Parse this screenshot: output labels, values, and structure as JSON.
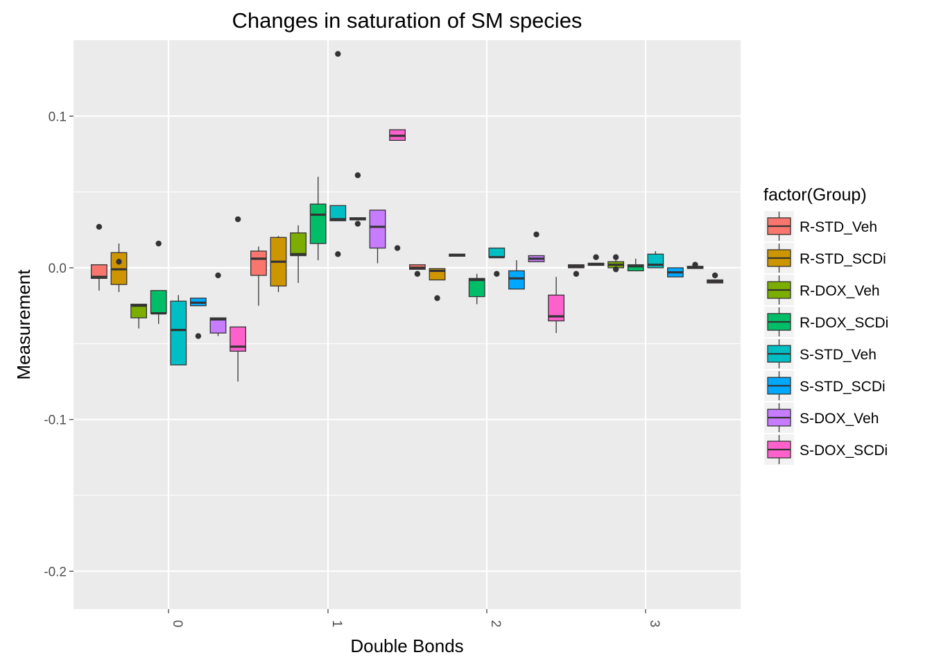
{
  "chart_data": {
    "type": "boxplot",
    "title": "Changes in saturation of SM species",
    "xlabel": "Double Bonds",
    "ylabel": "Measurement",
    "categories": [
      "0",
      "1",
      "2",
      "3"
    ],
    "ylim": [
      -0.225,
      0.15
    ],
    "yticks": [
      0.1,
      0.0,
      -0.1,
      -0.2
    ],
    "ytick_labels": [
      "0.1",
      "0.0",
      "-0.1",
      "-0.2"
    ],
    "grid": true,
    "legend": {
      "title": "factor(Group)",
      "position": "right",
      "entries": [
        "R-STD_Veh",
        "R-STD_SCDi",
        "R-DOX_Veh",
        "R-DOX_SCDi",
        "S-STD_Veh",
        "S-STD_SCDi",
        "S-DOX_Veh",
        "S-DOX_SCDi"
      ]
    },
    "series": [
      {
        "name": "R-STD_Veh",
        "color": "#F8766D",
        "boxes": [
          {
            "category": "0",
            "whisker_low": -0.015,
            "q1": -0.007,
            "median": -0.006,
            "q3": 0.002,
            "whisker_high": 0.002,
            "outliers": [
              0.027
            ]
          },
          {
            "category": "1",
            "whisker_low": -0.025,
            "q1": -0.005,
            "median": 0.006,
            "q3": 0.011,
            "whisker_high": 0.014,
            "outliers": []
          },
          {
            "category": "2",
            "whisker_low": -0.001,
            "q1": -0.001,
            "median": 0.0,
            "q3": 0.002,
            "whisker_high": 0.002,
            "outliers": [
              -0.004
            ]
          },
          {
            "category": "3",
            "whisker_low": 0.0,
            "q1": 0.0,
            "median": 0.001,
            "q3": 0.002,
            "whisker_high": 0.002,
            "outliers": [
              -0.004
            ]
          }
        ]
      },
      {
        "name": "R-STD_SCDi",
        "color": "#CD9600",
        "boxes": [
          {
            "category": "0",
            "whisker_low": -0.016,
            "q1": -0.011,
            "median": -0.001,
            "q3": 0.01,
            "whisker_high": 0.016,
            "outliers": [
              0.004
            ]
          },
          {
            "category": "1",
            "whisker_low": -0.016,
            "q1": -0.012,
            "median": 0.004,
            "q3": 0.02,
            "whisker_high": 0.021,
            "outliers": []
          },
          {
            "category": "2",
            "whisker_low": -0.008,
            "q1": -0.008,
            "median": -0.002,
            "q3": -0.0005,
            "whisker_high": -0.0005,
            "outliers": [
              -0.02
            ]
          },
          {
            "category": "3",
            "whisker_low": 0.002,
            "q1": 0.002,
            "median": 0.0025,
            "q3": 0.003,
            "whisker_high": 0.003,
            "outliers": [
              0.007
            ]
          }
        ]
      },
      {
        "name": "R-DOX_Veh",
        "color": "#7CAE00",
        "boxes": [
          {
            "category": "0",
            "whisker_low": -0.04,
            "q1": -0.033,
            "median": -0.025,
            "q3": -0.024,
            "whisker_high": -0.024,
            "outliers": []
          },
          {
            "category": "1",
            "whisker_low": -0.01,
            "q1": 0.008,
            "median": 0.009,
            "q3": 0.023,
            "whisker_high": 0.028,
            "outliers": []
          },
          {
            "category": "2",
            "whisker_low": 0.008,
            "q1": 0.008,
            "median": 0.0085,
            "q3": 0.009,
            "whisker_high": 0.009,
            "outliers": []
          },
          {
            "category": "3",
            "whisker_low": 0.0,
            "q1": 0.0,
            "median": 0.002,
            "q3": 0.004,
            "whisker_high": 0.005,
            "outliers": [
              -0.001,
              0.007
            ]
          }
        ]
      },
      {
        "name": "R-DOX_SCDi",
        "color": "#00BE67",
        "boxes": [
          {
            "category": "0",
            "whisker_low": -0.037,
            "q1": -0.03,
            "median": -0.03,
            "q3": -0.015,
            "whisker_high": -0.015,
            "outliers": [
              0.016
            ]
          },
          {
            "category": "1",
            "whisker_low": 0.005,
            "q1": 0.016,
            "median": 0.035,
            "q3": 0.042,
            "whisker_high": 0.06,
            "outliers": []
          },
          {
            "category": "2",
            "whisker_low": -0.024,
            "q1": -0.019,
            "median": -0.008,
            "q3": -0.007,
            "whisker_high": -0.004,
            "outliers": []
          },
          {
            "category": "3",
            "whisker_low": -0.002,
            "q1": -0.002,
            "median": 0.001,
            "q3": 0.002,
            "whisker_high": 0.006,
            "outliers": []
          }
        ]
      },
      {
        "name": "S-STD_Veh",
        "color": "#00BFC4",
        "boxes": [
          {
            "category": "0",
            "whisker_low": -0.064,
            "q1": -0.064,
            "median": -0.041,
            "q3": -0.022,
            "whisker_high": -0.018,
            "outliers": []
          },
          {
            "category": "1",
            "whisker_low": 0.031,
            "q1": 0.031,
            "median": 0.032,
            "q3": 0.041,
            "whisker_high": 0.041,
            "outliers": [
              0.141,
              0.009
            ]
          },
          {
            "category": "2",
            "whisker_low": 0.007,
            "q1": 0.007,
            "median": 0.007,
            "q3": 0.013,
            "whisker_high": 0.013,
            "outliers": [
              -0.004
            ]
          },
          {
            "category": "3",
            "whisker_low": 0.0,
            "q1": 0.0,
            "median": 0.002,
            "q3": 0.009,
            "whisker_high": 0.011,
            "outliers": []
          }
        ]
      },
      {
        "name": "S-STD_SCDi",
        "color": "#00A9FF",
        "boxes": [
          {
            "category": "0",
            "whisker_low": -0.025,
            "q1": -0.025,
            "median": -0.023,
            "q3": -0.02,
            "whisker_high": -0.02,
            "outliers": [
              -0.045
            ]
          },
          {
            "category": "1",
            "whisker_low": 0.032,
            "q1": 0.032,
            "median": 0.032,
            "q3": 0.033,
            "whisker_high": 0.033,
            "outliers": [
              0.061,
              0.029
            ]
          },
          {
            "category": "2",
            "whisker_low": -0.014,
            "q1": -0.014,
            "median": -0.007,
            "q3": -0.002,
            "whisker_high": 0.005,
            "outliers": []
          },
          {
            "category": "3",
            "whisker_low": -0.006,
            "q1": -0.006,
            "median": -0.003,
            "q3": 0.0,
            "whisker_high": 0.0,
            "outliers": []
          }
        ]
      },
      {
        "name": "S-DOX_Veh",
        "color": "#C77CFF",
        "boxes": [
          {
            "category": "0",
            "whisker_low": -0.045,
            "q1": -0.043,
            "median": -0.034,
            "q3": -0.033,
            "whisker_high": -0.033,
            "outliers": [
              -0.005
            ]
          },
          {
            "category": "1",
            "whisker_low": 0.003,
            "q1": 0.013,
            "median": 0.027,
            "q3": 0.038,
            "whisker_high": 0.038,
            "outliers": []
          },
          {
            "category": "2",
            "whisker_low": 0.004,
            "q1": 0.004,
            "median": 0.006,
            "q3": 0.008,
            "whisker_high": 0.008,
            "outliers": [
              0.022
            ]
          },
          {
            "category": "3",
            "whisker_low": 0.0,
            "q1": 0.0,
            "median": 0.0,
            "q3": 0.001,
            "whisker_high": 0.001,
            "outliers": [
              0.002
            ]
          }
        ]
      },
      {
        "name": "S-DOX_SCDi",
        "color": "#FF61CC",
        "boxes": [
          {
            "category": "0",
            "whisker_low": -0.075,
            "q1": -0.055,
            "median": -0.052,
            "q3": -0.039,
            "whisker_high": -0.039,
            "outliers": [
              0.032
            ]
          },
          {
            "category": "1",
            "whisker_low": 0.084,
            "q1": 0.084,
            "median": 0.087,
            "q3": 0.091,
            "whisker_high": 0.091,
            "outliers": [
              0.013
            ]
          },
          {
            "category": "2",
            "whisker_low": -0.043,
            "q1": -0.035,
            "median": -0.032,
            "q3": -0.018,
            "whisker_high": -0.006,
            "outliers": []
          },
          {
            "category": "3",
            "whisker_low": -0.01,
            "q1": -0.01,
            "median": -0.009,
            "q3": -0.008,
            "whisker_high": -0.008,
            "outliers": [
              -0.005
            ]
          }
        ]
      }
    ],
    "colors": {
      "panel_background": "#EBEBEB",
      "grid_line": "#FFFFFF",
      "box_outline": "#333333",
      "tick_text": "#4D4D4D"
    }
  }
}
